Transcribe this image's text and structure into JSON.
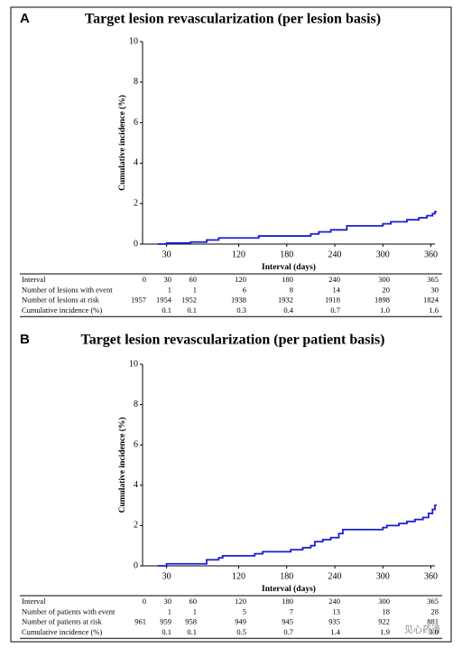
{
  "chart_data": [
    {
      "type": "line",
      "step": "post",
      "panel": "A",
      "title": "Target lesion revascularization (per lesion basis)",
      "x_label": "Interval (days)",
      "y_label": "Cumulative incidence (%)",
      "xlim": [
        0,
        365
      ],
      "ylim": [
        0,
        10
      ],
      "xticks": [
        30,
        120,
        180,
        240,
        300,
        360
      ],
      "yticks": [
        0,
        2,
        4,
        6,
        8,
        10
      ],
      "x": [
        20,
        30,
        60,
        80,
        95,
        145,
        210,
        220,
        235,
        255,
        300,
        310,
        330,
        345,
        355,
        362,
        365
      ],
      "series": [
        {
          "color": "#1f1fd6",
          "values": [
            0,
            0.05,
            0.1,
            0.2,
            0.3,
            0.4,
            0.5,
            0.6,
            0.7,
            0.9,
            1.0,
            1.1,
            1.2,
            1.3,
            1.4,
            1.5,
            1.6
          ]
        }
      ],
      "table": {
        "rows": [
          [
            "Interval",
            "0",
            "30",
            "60",
            "120",
            "180",
            "240",
            "300",
            "365"
          ],
          [
            "Number of lesions with event",
            null,
            "1",
            "1",
            "6",
            "8",
            "14",
            "20",
            "30"
          ],
          [
            "Number of lesions at risk",
            "1957",
            "1954",
            "1952",
            "1938",
            "1932",
            "1918",
            "1898",
            "1824"
          ],
          [
            "Cumulative incidence (%)",
            null,
            "0.1",
            "0.1",
            "0.3",
            "0.4",
            "0.7",
            "1.0",
            "1.6"
          ]
        ]
      }
    },
    {
      "type": "line",
      "step": "post",
      "panel": "B",
      "title": "Target lesion revascularization (per patient basis)",
      "x_label": "Interval (days)",
      "y_label": "Cumulative incidence (%)",
      "xlim": [
        0,
        365
      ],
      "ylim": [
        0,
        10
      ],
      "xticks": [
        30,
        120,
        180,
        240,
        300,
        360
      ],
      "yticks": [
        0,
        2,
        4,
        6,
        8,
        10
      ],
      "x": [
        20,
        30,
        80,
        95,
        100,
        140,
        150,
        185,
        200,
        210,
        215,
        225,
        235,
        245,
        250,
        300,
        305,
        320,
        330,
        340,
        350,
        357,
        362,
        365
      ],
      "series": [
        {
          "color": "#1f1fd6",
          "values": [
            0,
            0.1,
            0.3,
            0.4,
            0.5,
            0.6,
            0.7,
            0.8,
            0.9,
            1.0,
            1.2,
            1.3,
            1.4,
            1.6,
            1.8,
            1.9,
            2.0,
            2.1,
            2.2,
            2.3,
            2.4,
            2.6,
            2.8,
            3.0
          ]
        }
      ],
      "table": {
        "rows": [
          [
            "Interval",
            "0",
            "30",
            "60",
            "120",
            "180",
            "240",
            "300",
            "365"
          ],
          [
            "Number of patients with event",
            null,
            "1",
            "1",
            "5",
            "7",
            "13",
            "18",
            "28"
          ],
          [
            "Number of patients at risk",
            "961",
            "959",
            "958",
            "949",
            "945",
            "935",
            "922",
            "881"
          ],
          [
            "Cumulative incidence (%)",
            null,
            "0.1",
            "0.1",
            "0.5",
            "0.7",
            "1.4",
            "1.9",
            "3.0"
          ]
        ]
      }
    }
  ],
  "watermark": "见心药道"
}
